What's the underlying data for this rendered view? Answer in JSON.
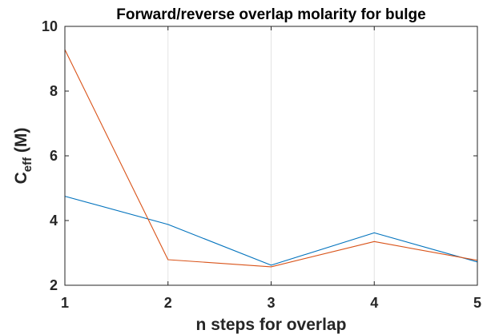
{
  "chart_data": {
    "type": "line",
    "title": "Forward/reverse overlap molarity for bulge",
    "xlabel": "n steps for overlap",
    "ylabel": {
      "main": "C",
      "subscript": "eff",
      "suffix": " (M)"
    },
    "x": [
      1,
      2,
      3,
      4,
      5
    ],
    "xlim": [
      1,
      5
    ],
    "ylim": [
      2,
      10
    ],
    "xticks": [
      1,
      2,
      3,
      4,
      5
    ],
    "yticks": [
      2,
      4,
      6,
      8,
      10
    ],
    "grid": "x",
    "series": [
      {
        "color": "#0072BD",
        "values": [
          4.75,
          3.88,
          2.62,
          3.62,
          2.72
        ]
      },
      {
        "color": "#D95319",
        "values": [
          9.28,
          2.79,
          2.57,
          3.35,
          2.77
        ]
      }
    ]
  }
}
